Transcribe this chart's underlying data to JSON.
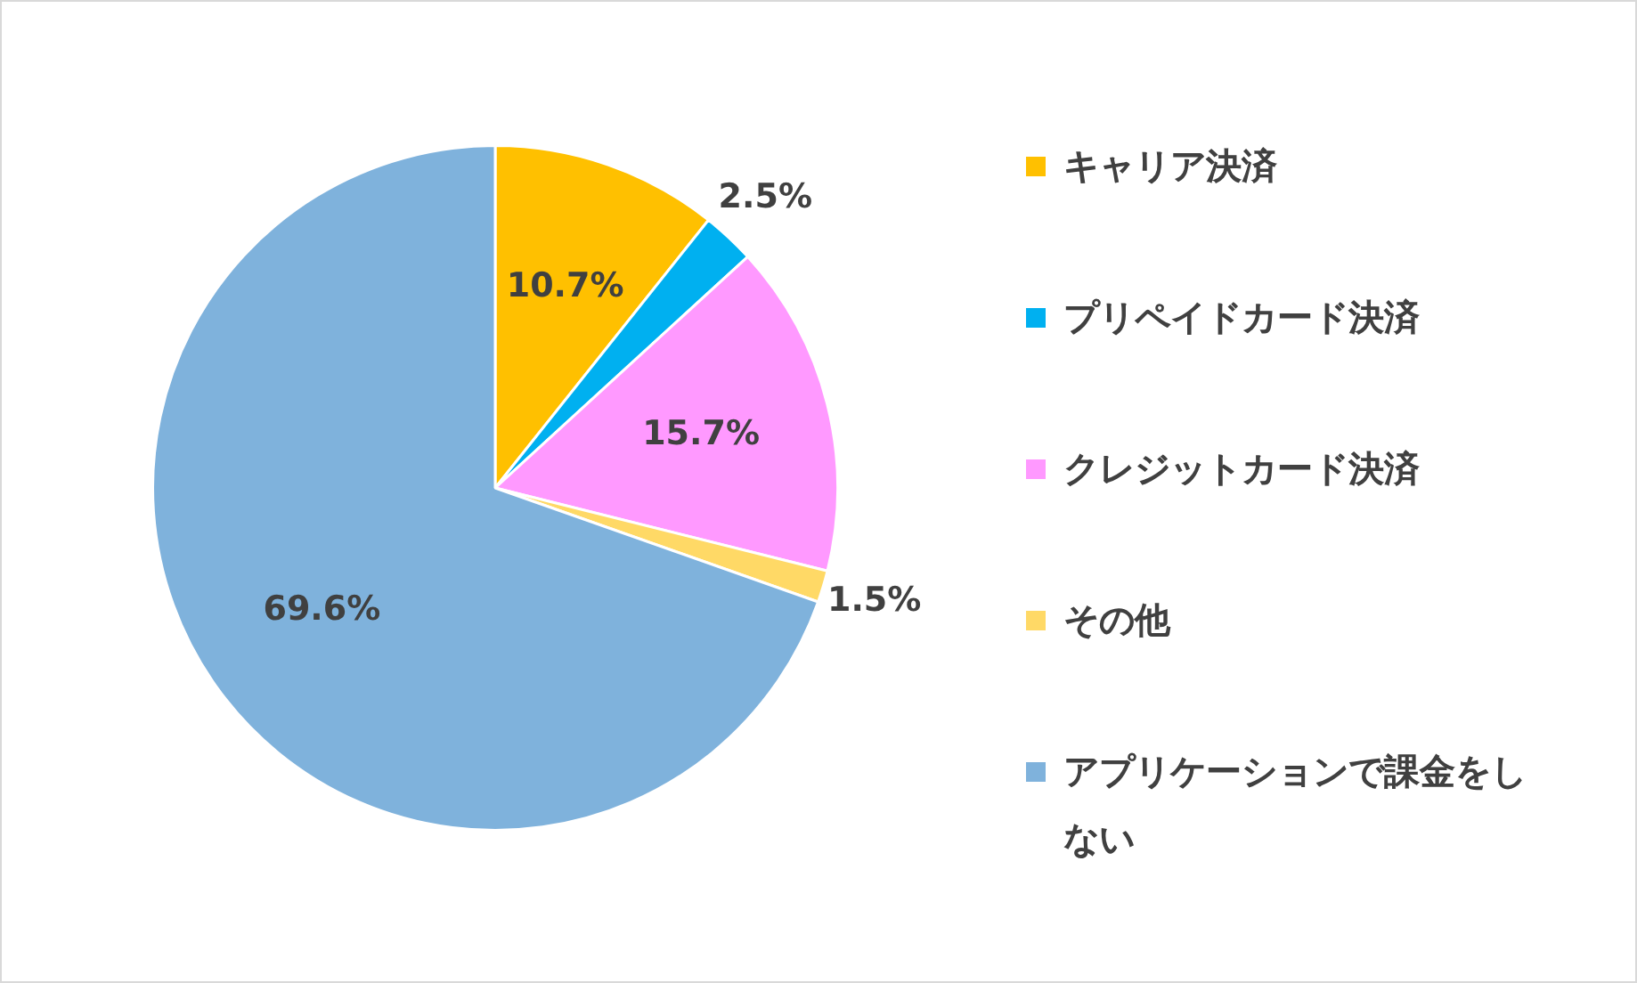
{
  "chart_data": {
    "type": "pie",
    "categories": [
      "キャリア決済",
      "プリペイドカード決済",
      "クレジットカード決済",
      "その他",
      "アプリケーションで課金をしない"
    ],
    "values": [
      10.7,
      2.5,
      15.7,
      1.5,
      69.6
    ],
    "colors": [
      "#ffc000",
      "#00b0f0",
      "#ff99ff",
      "#ffd966",
      "#7fb2dc"
    ],
    "value_labels": [
      "10.7%",
      "2.5%",
      "15.7%",
      "1.5%",
      "69.6%"
    ],
    "legend": "right"
  }
}
